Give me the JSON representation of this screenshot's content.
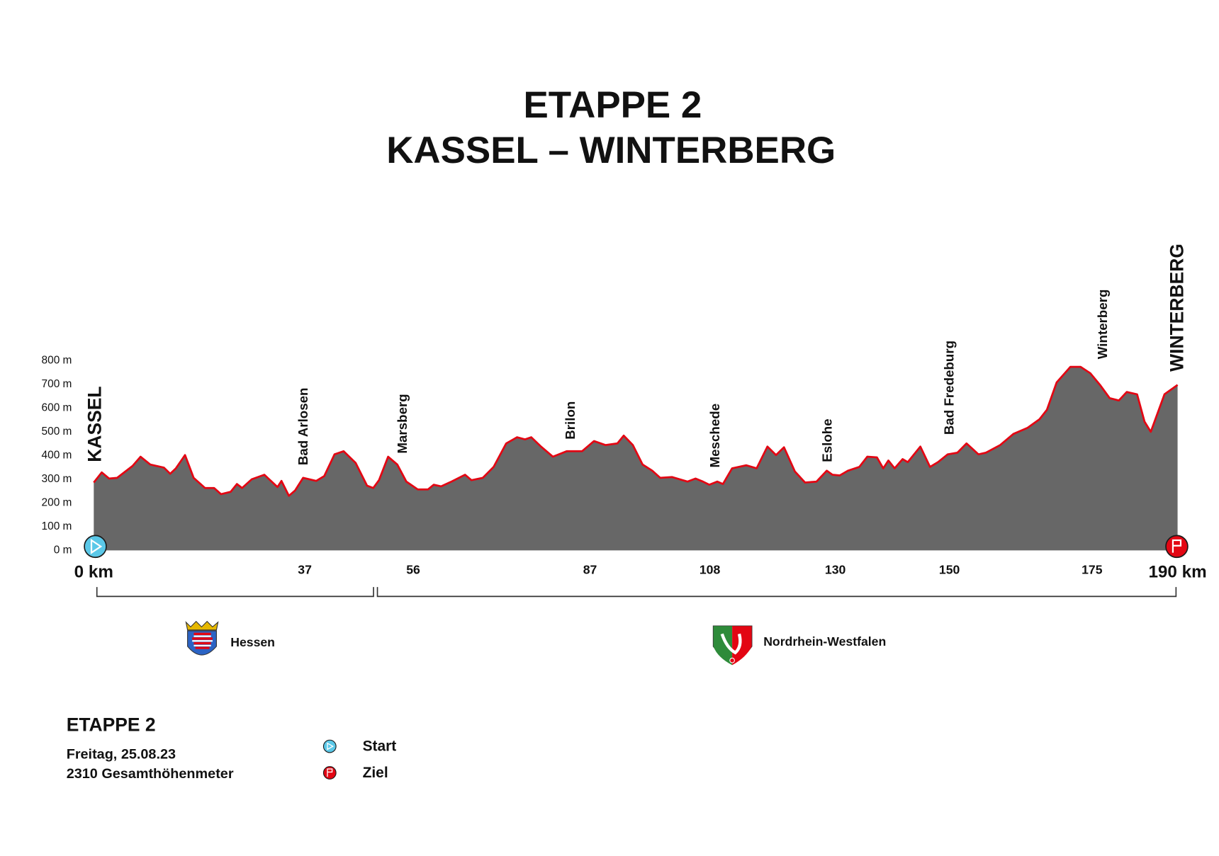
{
  "chart_data": {
    "type": "area",
    "title": [
      "ETAPPE 2",
      "KASSEL – WINTERBERG"
    ],
    "color": "#676767",
    "line_color": "#e30613",
    "x": [
      0,
      1.4,
      2.7,
      4.1,
      6.8,
      8.2,
      9.9,
      12.3,
      13.4,
      14.4,
      16,
      17.5,
      19.5,
      21.1,
      22.3,
      24,
      25.1,
      26,
      27.7,
      29.9,
      32.2,
      32.9,
      34.2,
      35.3,
      36.7,
      39,
      40.4,
      42.2,
      43.8,
      45.9,
      47.9,
      49,
      50,
      51.6,
      53.2,
      54.8,
      56.8,
      58.6,
      59.6,
      60.9,
      62.7,
      65.1,
      66.2,
      68.2,
      70.1,
      72.3,
      74.2,
      75.6,
      76.7,
      78.4,
      80.5,
      82.9,
      85.6,
      87.7,
      89.7,
      91.8,
      92.9,
      94.5,
      96.2,
      97.9,
      99.3,
      101.4,
      104.1,
      105.5,
      106.8,
      107.9,
      109.3,
      110.3,
      111.9,
      114.4,
      116.2,
      118.1,
      119.6,
      121,
      122.9,
      124.7,
      126.7,
      128.5,
      129.5,
      130.8,
      132.2,
      134.2,
      135.6,
      137.3,
      138.4,
      139.3,
      140.4,
      141.8,
      142.7,
      144.9,
      146.6,
      148,
      149.7,
      151.4,
      153,
      155.1,
      156.4,
      158.9,
      161.2,
      163.7,
      165.8,
      167.1,
      168.8,
      171.2,
      173,
      174.7,
      176.4,
      178.1,
      179.7,
      181.1,
      182.9,
      184.2,
      185.3,
      187.7,
      190
    ],
    "values": [
      286,
      329,
      303,
      306,
      356,
      395,
      362,
      349,
      323,
      346,
      402,
      306,
      263,
      263,
      237,
      247,
      280,
      263,
      300,
      319,
      267,
      293,
      230,
      253,
      306,
      293,
      313,
      405,
      418,
      369,
      273,
      263,
      296,
      395,
      362,
      290,
      257,
      257,
      277,
      270,
      290,
      319,
      296,
      306,
      352,
      451,
      477,
      468,
      477,
      438,
      395,
      418,
      418,
      461,
      444,
      451,
      484,
      444,
      362,
      336,
      306,
      309,
      290,
      303,
      290,
      277,
      290,
      280,
      346,
      359,
      346,
      438,
      402,
      435,
      333,
      286,
      290,
      336,
      319,
      316,
      336,
      352,
      395,
      392,
      346,
      379,
      346,
      385,
      372,
      438,
      352,
      372,
      405,
      412,
      451,
      405,
      412,
      444,
      491,
      517,
      553,
      593,
      708,
      774,
      774,
      747,
      698,
      642,
      632,
      668,
      658,
      543,
      500,
      658,
      698
    ],
    "xlim": [
      0,
      190
    ],
    "xticks": [
      {
        "value": 0,
        "label": "0 km"
      },
      37,
      56,
      87,
      108,
      130,
      150,
      175,
      {
        "value": 190,
        "label": "190 km"
      }
    ],
    "ylim": [
      0,
      800
    ],
    "yticks": [
      {
        "value": 0,
        "label": "0 m"
      },
      {
        "value": 100,
        "label": "100 m"
      },
      {
        "value": 200,
        "label": "200 m"
      },
      {
        "value": 300,
        "label": "300 m"
      },
      {
        "value": 400,
        "label": "400 m"
      },
      {
        "value": 500,
        "label": "500 m"
      },
      {
        "value": 600,
        "label": "600 m"
      },
      {
        "value": 700,
        "label": "700 m"
      },
      {
        "value": 800,
        "label": "800 m"
      }
    ],
    "places": [
      "KASSEL",
      "Bad Arlosen",
      "Marsberg",
      "Brilon",
      "Meschede",
      "Eslohe",
      "Bad Fredeburg",
      "Winterberg",
      "WINTERBERG"
    ],
    "regions": [
      "Hessen",
      "Nordrhein-Westfalen"
    ],
    "legend": [
      "Start",
      "Ziel"
    ],
    "footer": {
      "title": "ETAPPE 2",
      "date": "Freitag, 25.08.23",
      "climb": "2310 Gesamthöhenmeter"
    }
  }
}
